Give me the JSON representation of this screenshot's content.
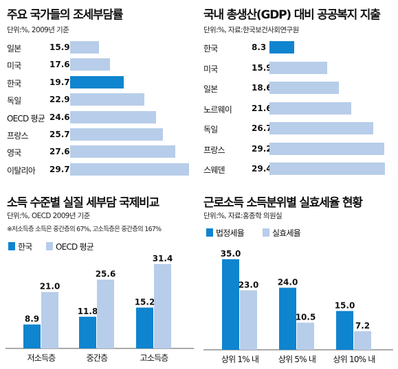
{
  "colors": {
    "korea": "#0f84cf",
    "other": "#b7cde9",
    "statutory": "#0f84cf",
    "effective": "#b7cde9"
  },
  "panel1": {
    "title": "주요 국가들의 조세부담률",
    "subtitle": "단위:%, 2009년 기준"
  },
  "panel2": {
    "title": "국내 총생산(GDP) 대비 공공복지 지출",
    "subtitle": "단위:%, 자료:한국보건사회연구원"
  },
  "panel3": {
    "title": "소득 수준별 실질 세부담 국제비교",
    "subtitle": "단위:%, OECD 2009년 기준",
    "note": "※저소득층 소득은 중간층의 67%, 고소득층은 중간층의 167%",
    "legend": [
      "한국",
      "OECD 평균"
    ]
  },
  "panel4": {
    "title": "근로소득 소득분위별 실효세율 현황",
    "subtitle": "단위:%, 자료:홍종학 의원실",
    "legend": [
      "법정세율",
      "실효세율"
    ]
  },
  "chart_data": [
    {
      "type": "bar",
      "orientation": "horizontal",
      "title": "주요 국가들의 조세부담률",
      "subtitle": "단위:%, 2009년 기준",
      "categories": [
        "일본",
        "미국",
        "한국",
        "독일",
        "OECD 평균",
        "프랑스",
        "영국",
        "이탈리아"
      ],
      "values": [
        15.9,
        17.6,
        19.7,
        22.9,
        24.6,
        25.7,
        27.6,
        29.7
      ],
      "labels": [
        "15.9",
        "17.6",
        "19.7",
        "22.9",
        "24.6",
        "25.7",
        "27.6",
        "29.7"
      ],
      "highlight": "한국",
      "xlim": [
        11.5,
        29.7
      ]
    },
    {
      "type": "bar",
      "orientation": "horizontal",
      "title": "국내 총생산(GDP) 대비 공공복지 지출",
      "subtitle": "단위:%, 자료:한국보건사회연구원",
      "categories": [
        "한국",
        "미국",
        "일본",
        "노르웨이",
        "독일",
        "프랑스",
        "스웨덴"
      ],
      "values": [
        8.3,
        15.9,
        18.6,
        21.6,
        26.7,
        29.2,
        29.4
      ],
      "labels": [
        "8.3",
        "15.9",
        "18.6",
        "21.6",
        "26.7",
        "29.2",
        "29.4"
      ],
      "highlight": "한국",
      "xlim": [
        2.5,
        29.4
      ]
    },
    {
      "type": "bar",
      "title": "소득 수준별 실질 세부담 국제비교",
      "subtitle": "단위:%, OECD 2009년 기준",
      "categories": [
        "저소득층",
        "중간층",
        "고소득층"
      ],
      "series": [
        {
          "name": "한국",
          "values": [
            8.9,
            11.8,
            15.2
          ],
          "labels": [
            "8.9",
            "11.8",
            "15.2"
          ]
        },
        {
          "name": "OECD 평균",
          "values": [
            21.0,
            25.6,
            31.4
          ],
          "labels": [
            "21.0",
            "25.6",
            "31.4"
          ]
        }
      ],
      "ylim": [
        0,
        31.4
      ]
    },
    {
      "type": "bar",
      "title": "근로소득 소득분위별 실효세율 현황",
      "subtitle": "단위:%, 자료:홍종학 의원실",
      "categories": [
        "상위 1% 내",
        "상위 5% 내",
        "상위 10% 내"
      ],
      "series": [
        {
          "name": "법정세율",
          "values": [
            35.0,
            24.0,
            15.0
          ],
          "labels": [
            "35.0",
            "24.0",
            "15.0"
          ]
        },
        {
          "name": "실효세율",
          "values": [
            23.0,
            10.5,
            7.2
          ],
          "labels": [
            "23.0",
            "10.5",
            "7.2"
          ]
        }
      ],
      "ylim": [
        0,
        35.0
      ]
    }
  ]
}
